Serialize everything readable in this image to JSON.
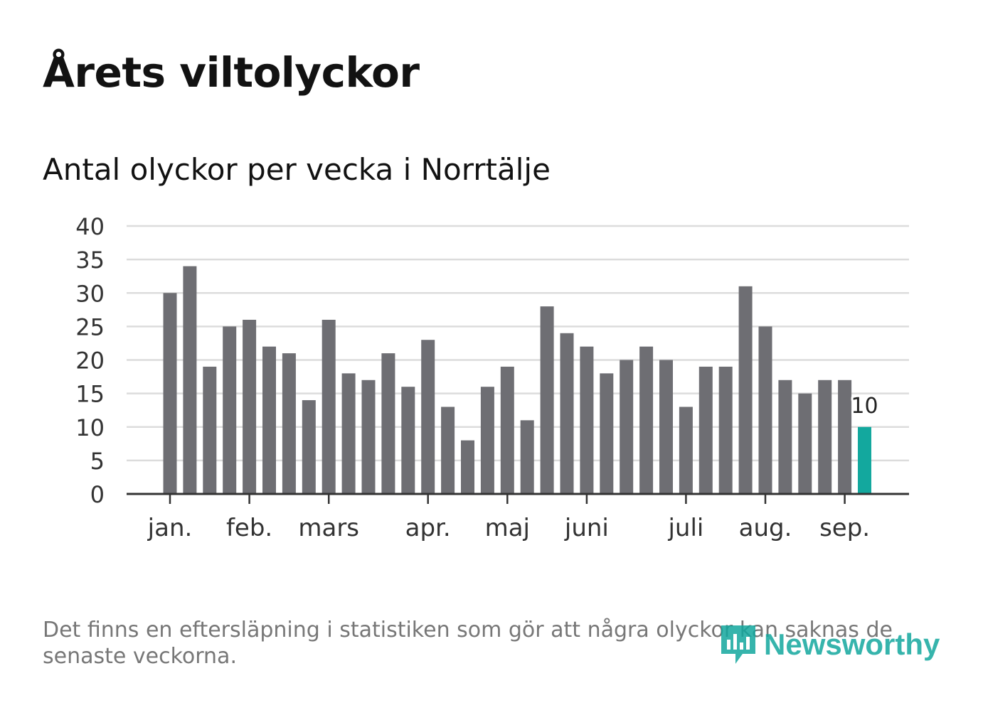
{
  "title": "Årets viltolyckor",
  "subtitle": "Antal olyckor per vecka i Norrtälje",
  "footnote": "Det finns en eftersläpning i statistiken som gör att några olyckor kan saknas de senaste veckorna.",
  "logo": {
    "text": "Newsworthy",
    "icon": "newsworthy-chart-icon",
    "color": "#13a89e"
  },
  "chart_data": {
    "type": "bar",
    "title": "Antal olyckor per vecka i Norrtälje",
    "xlabel": "",
    "ylabel": "",
    "ylim": [
      0,
      40
    ],
    "yticks": [
      0,
      5,
      10,
      15,
      20,
      25,
      30,
      35,
      40
    ],
    "grid": true,
    "values": [
      30,
      34,
      19,
      25,
      26,
      22,
      21,
      14,
      26,
      18,
      17,
      21,
      16,
      23,
      13,
      8,
      16,
      19,
      11,
      28,
      24,
      22,
      18,
      20,
      22,
      20,
      13,
      19,
      19,
      31,
      25,
      17,
      15,
      17,
      17,
      10
    ],
    "month_labels": [
      {
        "label": "jan.",
        "week": 1
      },
      {
        "label": "feb.",
        "week": 5
      },
      {
        "label": "mars",
        "week": 9
      },
      {
        "label": "apr.",
        "week": 14
      },
      {
        "label": "maj",
        "week": 18
      },
      {
        "label": "juni",
        "week": 22
      },
      {
        "label": "juli",
        "week": 27
      },
      {
        "label": "aug.",
        "week": 31
      },
      {
        "label": "sep.",
        "week": 35
      }
    ],
    "highlight": {
      "week": 36,
      "label": "10"
    },
    "colors": {
      "bar": "#6e6e73",
      "highlight": "#13a89e",
      "grid": "#dcdcdc",
      "axis": "#333333"
    }
  }
}
